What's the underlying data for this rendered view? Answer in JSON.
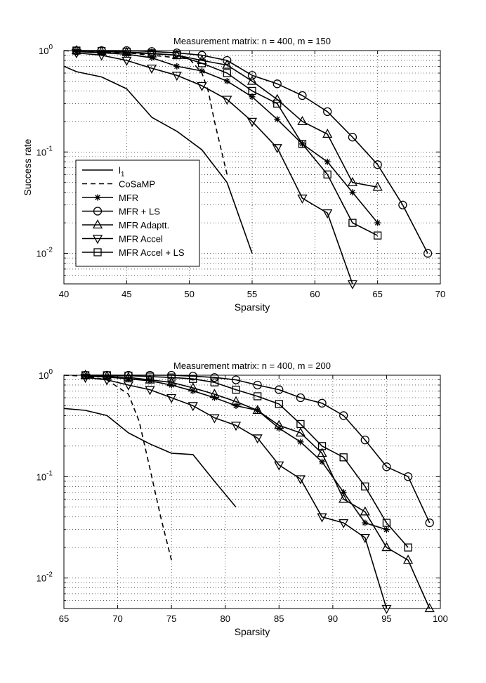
{
  "chart_data": [
    {
      "type": "line",
      "title": "Measurement matrix: n = 400, m = 150",
      "xlabel": "Sparsity",
      "ylabel": "Success rate",
      "yscale": "log",
      "xlim": [
        40,
        70
      ],
      "ylim": [
        0.005,
        1
      ],
      "xticks": [
        40,
        45,
        50,
        55,
        60,
        65,
        70
      ],
      "yticks": [
        {
          "value": 1,
          "base": "10",
          "exp": "0"
        },
        {
          "value": 0.1,
          "base": "10",
          "exp": "-1"
        },
        {
          "value": 0.01,
          "base": "10",
          "exp": "-2"
        }
      ],
      "grid": true,
      "legend_position": "left",
      "series": [
        {
          "key": "l1",
          "name": "l",
          "name_sub": "1",
          "style": "solid",
          "marker": "none",
          "x": [
            40,
            41,
            43,
            45,
            47,
            49,
            51,
            53,
            55
          ],
          "y": [
            0.7,
            0.62,
            0.55,
            0.42,
            0.22,
            0.16,
            0.105,
            0.05,
            0.01
          ]
        },
        {
          "key": "cosamp",
          "name": "CoSaMP",
          "style": "dashed",
          "marker": "none",
          "x": [
            40,
            41,
            43,
            45,
            47,
            49,
            50,
            51,
            51.5,
            52,
            53
          ],
          "y": [
            1,
            0.98,
            0.96,
            0.95,
            0.9,
            0.85,
            0.83,
            0.6,
            0.4,
            0.2,
            0.06
          ]
        },
        {
          "key": "mfr",
          "name": "MFR",
          "style": "solid",
          "marker": "star",
          "x": [
            41,
            43,
            45,
            47,
            49,
            51,
            53,
            55,
            57,
            59,
            61,
            63,
            65
          ],
          "y": [
            0.98,
            0.95,
            0.92,
            0.85,
            0.7,
            0.63,
            0.5,
            0.35,
            0.21,
            0.12,
            0.08,
            0.04,
            0.02
          ]
        },
        {
          "key": "mfr_ls",
          "name": "MFR + LS",
          "style": "solid",
          "marker": "circle",
          "x": [
            41,
            43,
            45,
            47,
            49,
            51,
            53,
            55,
            57,
            59,
            61,
            63,
            65,
            67,
            69
          ],
          "y": [
            1,
            1,
            1,
            0.98,
            0.95,
            0.9,
            0.8,
            0.57,
            0.47,
            0.36,
            0.25,
            0.14,
            0.075,
            0.03,
            0.01
          ]
        },
        {
          "key": "mfr_adapt",
          "name": "MFR Adaptt.",
          "style": "solid",
          "marker": "triangle-up",
          "x": [
            41,
            43,
            45,
            47,
            49,
            51,
            53,
            55,
            57,
            59,
            61,
            63,
            65
          ],
          "y": [
            1,
            0.98,
            0.96,
            0.93,
            0.9,
            0.8,
            0.72,
            0.5,
            0.33,
            0.2,
            0.15,
            0.05,
            0.045
          ]
        },
        {
          "key": "mfr_accel",
          "name": "MFR Accel",
          "style": "solid",
          "marker": "triangle-down",
          "x": [
            41,
            43,
            45,
            47,
            49,
            51,
            53,
            55,
            57,
            59,
            61,
            63
          ],
          "y": [
            0.95,
            0.9,
            0.8,
            0.67,
            0.57,
            0.45,
            0.33,
            0.2,
            0.11,
            0.035,
            0.025,
            0.005
          ]
        },
        {
          "key": "mfr_accel_ls",
          "name": "MFR Accel + LS",
          "style": "solid",
          "marker": "square",
          "x": [
            41,
            43,
            45,
            47,
            49,
            51,
            53,
            55,
            57,
            59,
            61,
            63,
            65
          ],
          "y": [
            1,
            0.99,
            0.97,
            0.94,
            0.9,
            0.75,
            0.6,
            0.4,
            0.3,
            0.12,
            0.06,
            0.02,
            0.015
          ]
        }
      ]
    },
    {
      "type": "line",
      "title": "Measurement matrix: n = 400, m = 200",
      "xlabel": "Sparsity",
      "ylabel": "",
      "yscale": "log",
      "xlim": [
        65,
        100
      ],
      "ylim": [
        0.005,
        1
      ],
      "xticks": [
        65,
        70,
        75,
        80,
        85,
        90,
        95,
        100
      ],
      "yticks": [
        {
          "value": 1,
          "base": "10",
          "exp": "0"
        },
        {
          "value": 0.1,
          "base": "10",
          "exp": "-1"
        },
        {
          "value": 0.01,
          "base": "10",
          "exp": "-2"
        }
      ],
      "grid": true,
      "series": [
        {
          "key": "l1",
          "name": "l",
          "name_sub": "1",
          "style": "solid",
          "marker": "none",
          "x": [
            65,
            67,
            69,
            71,
            73,
            75,
            77,
            79,
            81
          ],
          "y": [
            0.47,
            0.45,
            0.4,
            0.27,
            0.21,
            0.17,
            0.165,
            0.09,
            0.05
          ]
        },
        {
          "key": "cosamp",
          "name": "CoSaMP",
          "style": "dashed",
          "marker": "none",
          "x": [
            65,
            67,
            69,
            71,
            72,
            73,
            74,
            75
          ],
          "y": [
            1,
            0.98,
            0.9,
            0.65,
            0.35,
            0.12,
            0.04,
            0.015
          ]
        },
        {
          "key": "mfr",
          "name": "MFR",
          "style": "solid",
          "marker": "star",
          "x": [
            67,
            69,
            71,
            73,
            75,
            77,
            79,
            81,
            83,
            85,
            87,
            89,
            91,
            93,
            95
          ],
          "y": [
            0.98,
            0.96,
            0.92,
            0.88,
            0.8,
            0.7,
            0.6,
            0.5,
            0.45,
            0.3,
            0.22,
            0.14,
            0.07,
            0.035,
            0.03
          ]
        },
        {
          "key": "mfr_ls",
          "name": "MFR + LS",
          "style": "solid",
          "marker": "circle",
          "x": [
            67,
            69,
            71,
            73,
            75,
            77,
            79,
            81,
            83,
            85,
            87,
            89,
            91,
            93,
            95,
            97,
            99
          ],
          "y": [
            1,
            1,
            1,
            1,
            1,
            0.98,
            0.95,
            0.9,
            0.8,
            0.72,
            0.6,
            0.53,
            0.4,
            0.23,
            0.125,
            0.1,
            0.035
          ]
        },
        {
          "key": "mfr_adapt",
          "name": "MFR Adaptt.",
          "style": "solid",
          "marker": "triangle-up",
          "x": [
            67,
            69,
            71,
            73,
            75,
            77,
            79,
            81,
            83,
            85,
            87,
            89,
            91,
            93,
            95,
            97,
            99
          ],
          "y": [
            1,
            0.98,
            0.95,
            0.9,
            0.85,
            0.75,
            0.65,
            0.55,
            0.45,
            0.32,
            0.27,
            0.17,
            0.06,
            0.045,
            0.02,
            0.015,
            0.005
          ]
        },
        {
          "key": "mfr_accel",
          "name": "MFR Accel",
          "style": "solid",
          "marker": "triangle-down",
          "x": [
            67,
            69,
            71,
            73,
            75,
            77,
            79,
            81,
            83,
            85,
            87,
            89,
            91,
            93,
            95
          ],
          "y": [
            0.95,
            0.9,
            0.8,
            0.72,
            0.6,
            0.5,
            0.38,
            0.32,
            0.24,
            0.13,
            0.095,
            0.04,
            0.035,
            0.025,
            0.005
          ]
        },
        {
          "key": "mfr_accel_ls",
          "name": "MFR Accel + LS",
          "style": "solid",
          "marker": "square",
          "x": [
            67,
            69,
            71,
            73,
            75,
            77,
            79,
            81,
            83,
            85,
            87,
            89,
            91,
            93,
            95,
            97
          ],
          "y": [
            1,
            1,
            0.99,
            0.97,
            0.95,
            0.92,
            0.85,
            0.72,
            0.62,
            0.52,
            0.33,
            0.2,
            0.155,
            0.08,
            0.035,
            0.02
          ]
        }
      ]
    }
  ]
}
